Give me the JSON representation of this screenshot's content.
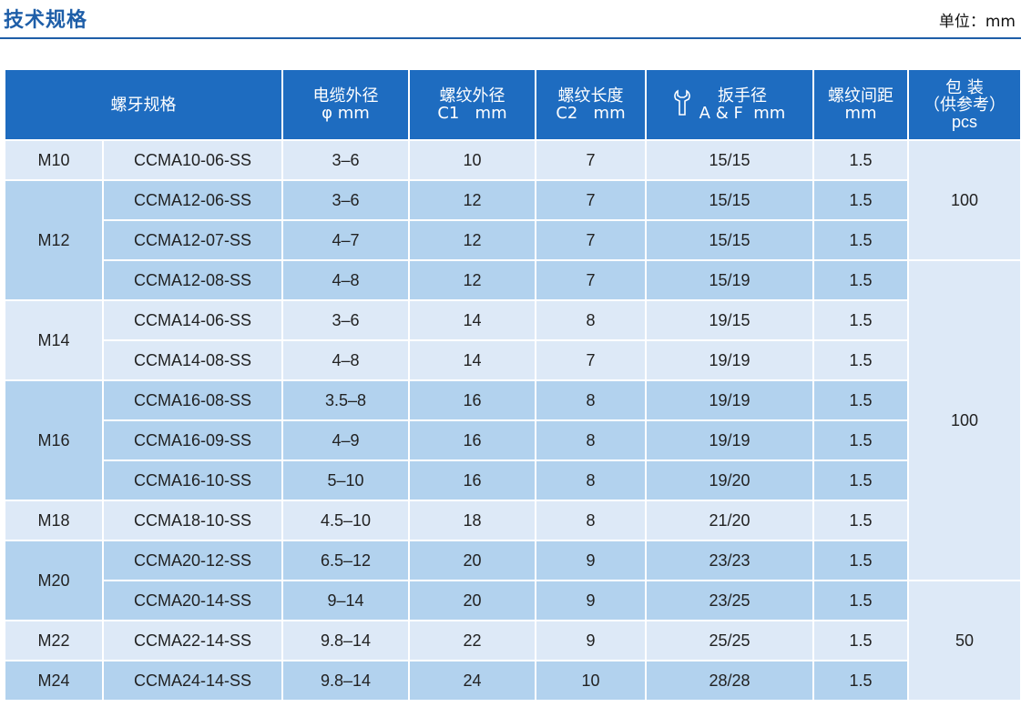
{
  "header": {
    "title": "技术规格",
    "unit": "单位：mm"
  },
  "table": {
    "columns": {
      "spec": "螺牙规格",
      "cable_line1": "电缆外径",
      "cable_line2": "φ mm",
      "thread_od_line1": "螺纹外径",
      "thread_od_line2": "C1   mm",
      "thread_len_line1": "螺纹长度",
      "thread_len_line2": "C2   mm",
      "wrench_line1": "扳手径",
      "wrench_line2": "A & F  mm",
      "pitch_line1": "螺纹间距",
      "pitch_line2": "mm",
      "pack_line1": "包 装",
      "pack_line2": "（供参考）",
      "pack_line3": "pcs"
    },
    "thread_groups": [
      {
        "label": "M10"
      },
      {
        "label": "M12"
      },
      {
        "label": "M14"
      },
      {
        "label": "M16"
      },
      {
        "label": "M18"
      },
      {
        "label": "M20"
      },
      {
        "label": "M22"
      },
      {
        "label": "M24"
      }
    ],
    "rows": [
      {
        "code": "CCMA10-06-SS",
        "cable": "3–6",
        "c1": "10",
        "c2": "7",
        "af": "15/15",
        "pitch": "1.5"
      },
      {
        "code": "CCMA12-06-SS",
        "cable": "3–6",
        "c1": "12",
        "c2": "7",
        "af": "15/15",
        "pitch": "1.5"
      },
      {
        "code": "CCMA12-07-SS",
        "cable": "4–7",
        "c1": "12",
        "c2": "7",
        "af": "15/15",
        "pitch": "1.5"
      },
      {
        "code": "CCMA12-08-SS",
        "cable": "4–8",
        "c1": "12",
        "c2": "7",
        "af": "15/19",
        "pitch": "1.5"
      },
      {
        "code": "CCMA14-06-SS",
        "cable": "3–6",
        "c1": "14",
        "c2": "8",
        "af": "19/15",
        "pitch": "1.5"
      },
      {
        "code": "CCMA14-08-SS",
        "cable": "4–8",
        "c1": "14",
        "c2": "7",
        "af": "19/19",
        "pitch": "1.5"
      },
      {
        "code": "CCMA16-08-SS",
        "cable": "3.5–8",
        "c1": "16",
        "c2": "8",
        "af": "19/19",
        "pitch": "1.5"
      },
      {
        "code": "CCMA16-09-SS",
        "cable": "4–9",
        "c1": "16",
        "c2": "8",
        "af": "19/19",
        "pitch": "1.5"
      },
      {
        "code": "CCMA16-10-SS",
        "cable": "5–10",
        "c1": "16",
        "c2": "8",
        "af": "19/20",
        "pitch": "1.5"
      },
      {
        "code": "CCMA18-10-SS",
        "cable": "4.5–10",
        "c1": "18",
        "c2": "8",
        "af": "21/20",
        "pitch": "1.5"
      },
      {
        "code": "CCMA20-12-SS",
        "cable": "6.5–12",
        "c1": "20",
        "c2": "9",
        "af": "23/23",
        "pitch": "1.5"
      },
      {
        "code": "CCMA20-14-SS",
        "cable": "9–14",
        "c1": "20",
        "c2": "9",
        "af": "23/25",
        "pitch": "1.5"
      },
      {
        "code": "CCMA22-14-SS",
        "cable": "9.8–14",
        "c1": "22",
        "c2": "9",
        "af": "25/25",
        "pitch": "1.5"
      },
      {
        "code": "CCMA24-14-SS",
        "cable": "9.8–14",
        "c1": "24",
        "c2": "10",
        "af": "28/28",
        "pitch": "1.5"
      }
    ],
    "packaging": [
      {
        "value": "100"
      },
      {
        "value": "100"
      },
      {
        "value": "50"
      }
    ]
  }
}
